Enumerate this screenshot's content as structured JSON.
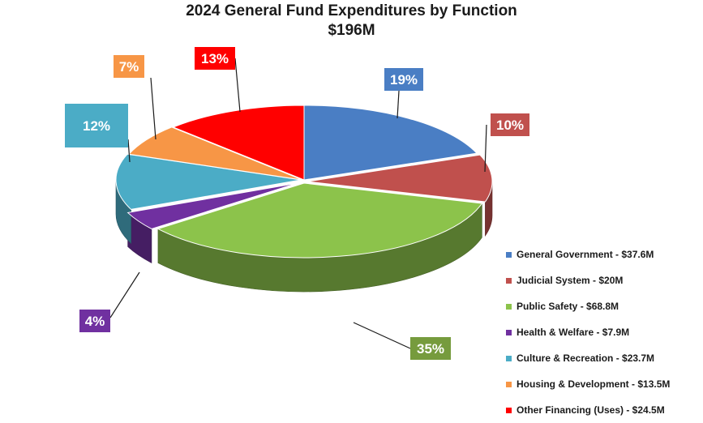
{
  "header": {
    "title": "2024 General Fund Expenditures by Function",
    "subtitle": "$196M"
  },
  "chart_data": {
    "type": "pie",
    "title": "2024 General Fund Expenditures by Function",
    "subtitle": "$196M",
    "style": "3d-exploded",
    "legend_position": "right",
    "slices": [
      {
        "name": "General Government",
        "legend": "General Government - $37.6M",
        "value": 37.6,
        "percent_label": "19%",
        "color": "#4a7ec4"
      },
      {
        "name": "Judicial System",
        "legend": "Judicial System - $20M",
        "value": 20,
        "percent_label": "10%",
        "color": "#c0504d"
      },
      {
        "name": "Public Safety",
        "legend": "Public Safety - $68.8M",
        "value": 68.8,
        "percent_label": "35%",
        "color": "#8cc34b"
      },
      {
        "name": "Health & Welfare",
        "legend": "Health & Welfare - $7.9M",
        "value": 7.9,
        "percent_label": "4%",
        "color": "#7030a0"
      },
      {
        "name": "Culture & Recreation",
        "legend": "Culture & Recreation - $23.7M",
        "value": 23.7,
        "percent_label": "12%",
        "color": "#4bacc6"
      },
      {
        "name": "Housing & Development",
        "legend": "Housing & Development - $13.5M",
        "value": 13.5,
        "percent_label": "7%",
        "color": "#f79646"
      },
      {
        "name": "Other Financing (Uses)",
        "legend": "Other Financing (Uses) - $24.5M",
        "value": 24.5,
        "percent_label": "13%",
        "color": "#ff0000"
      }
    ],
    "label_box_colors": [
      "#4a7ec4",
      "#c0504d",
      "#769b3d",
      "#7030a0",
      "#4bacc6",
      "#f79646",
      "#ff0000"
    ]
  }
}
